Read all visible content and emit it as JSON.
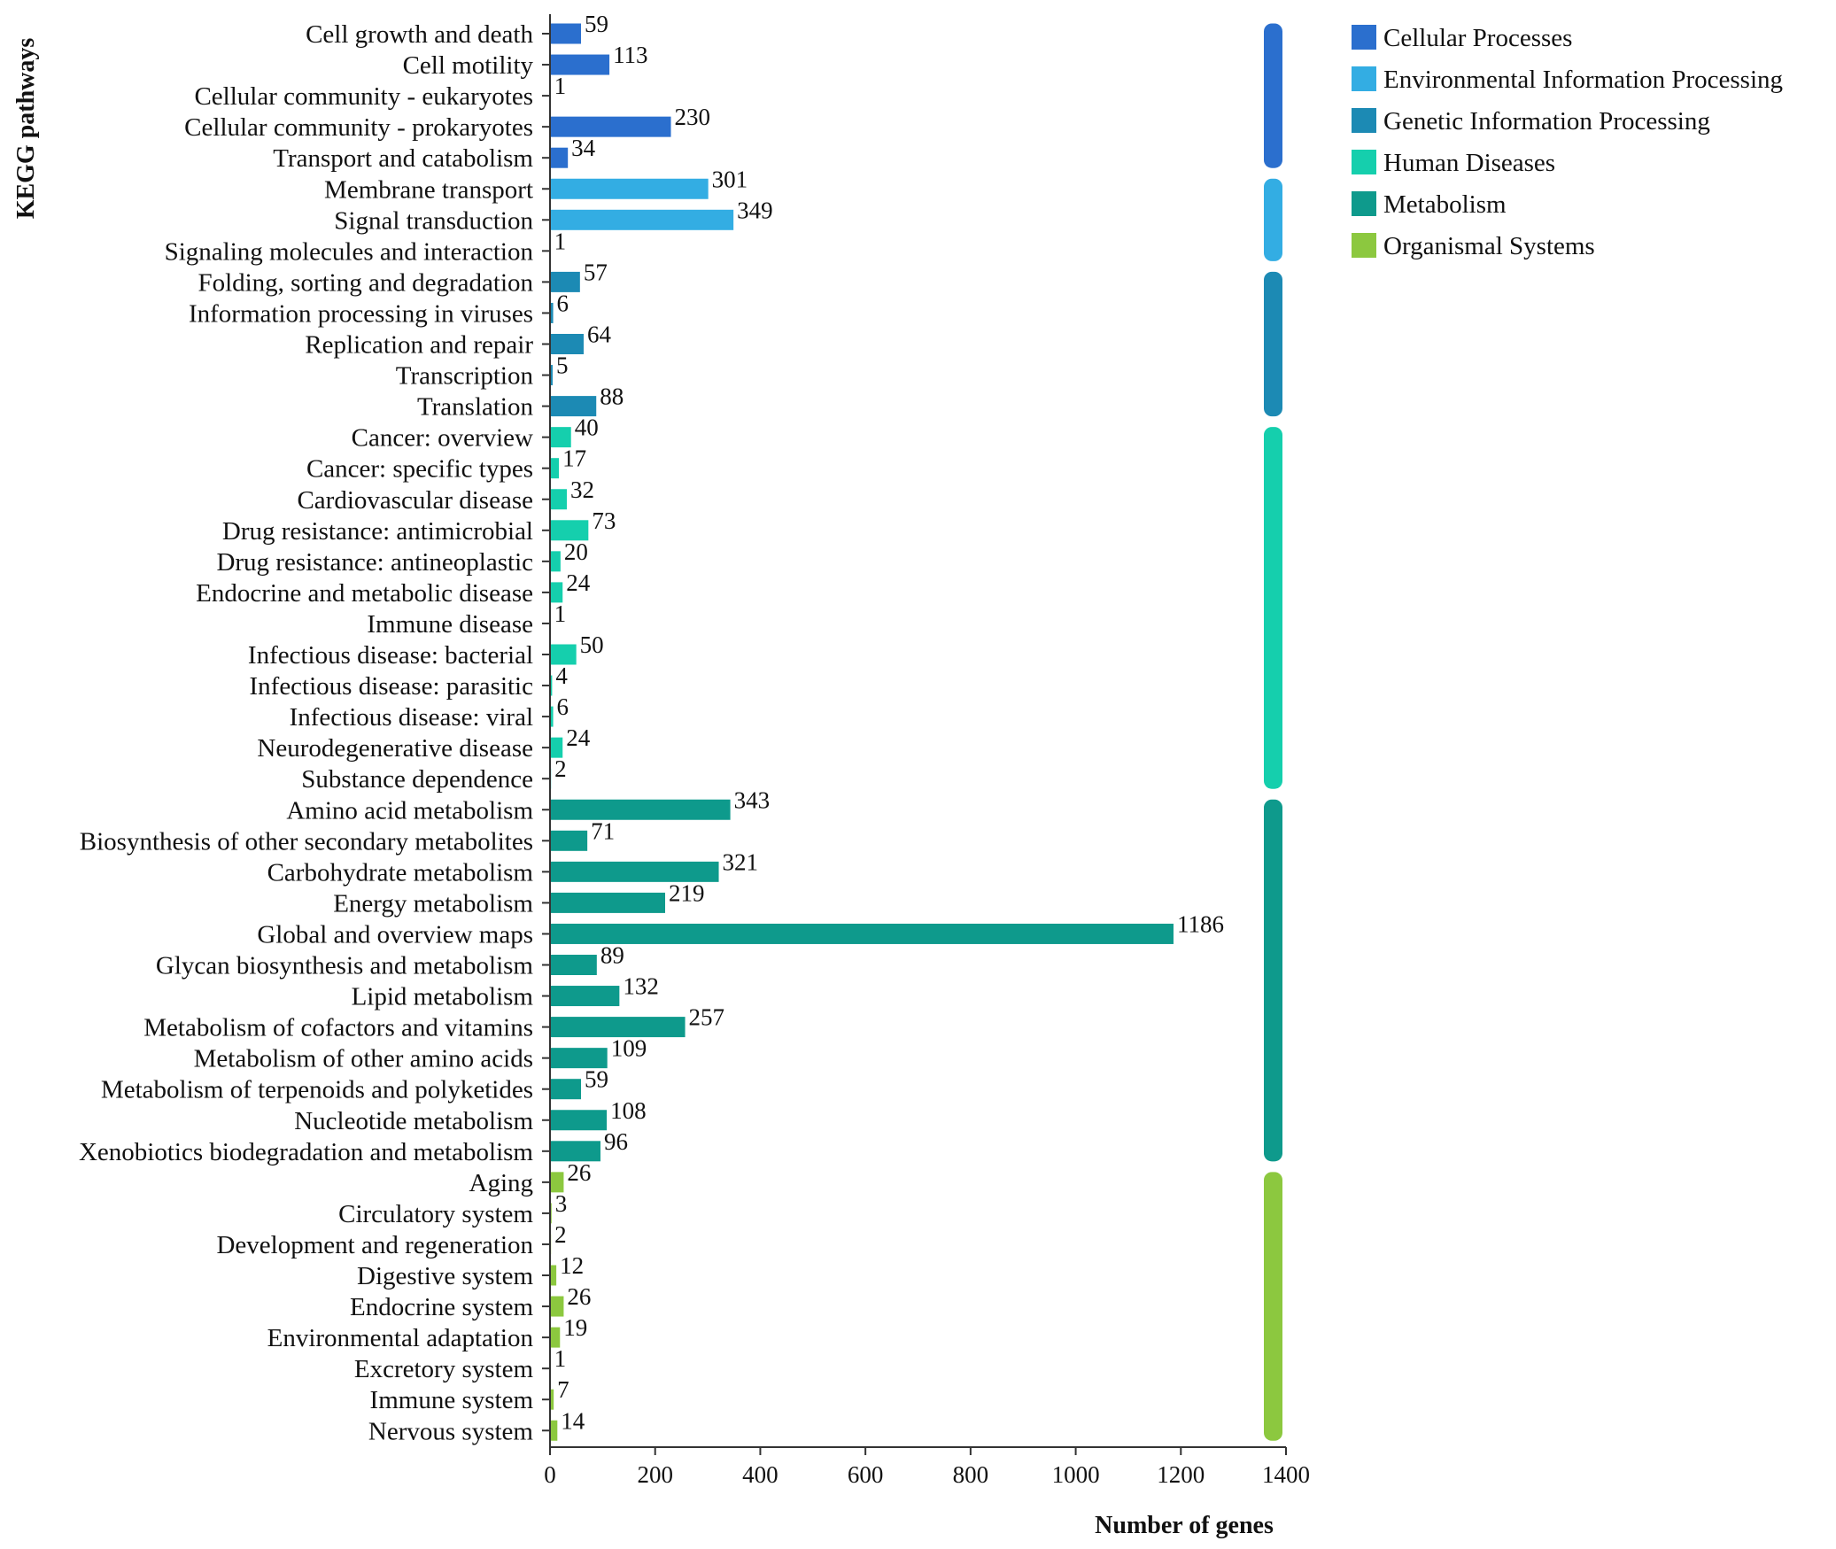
{
  "chart_data": {
    "type": "bar",
    "orientation": "horizontal",
    "xlabel": "Number of genes",
    "ylabel": "KEGG pathways",
    "xlim": [
      0,
      1400
    ],
    "xticks": [
      "0",
      "200",
      "400",
      "600",
      "800",
      "1000",
      "1200",
      "1400"
    ],
    "legend_position": "top-right",
    "grid": false,
    "groups": [
      {
        "name": "Cellular Processes",
        "color": "#2b6fce"
      },
      {
        "name": "Environmental Information Processing",
        "color": "#33ade3"
      },
      {
        "name": "Genetic Information Processing",
        "color": "#1c8ab4"
      },
      {
        "name": "Human Diseases",
        "color": "#15cfad"
      },
      {
        "name": "Metabolism",
        "color": "#0e9a8c"
      },
      {
        "name": "Organismal Systems",
        "color": "#8cc83f"
      }
    ],
    "categories": [
      "Cell growth and death",
      "Cell motility",
      "Cellular community - eukaryotes",
      "Cellular community - prokaryotes",
      "Transport and catabolism",
      "Membrane transport",
      "Signal transduction",
      "Signaling molecules and interaction",
      "Folding, sorting and degradation",
      "Information processing in viruses",
      "Replication and repair",
      "Transcription",
      "Translation",
      "Cancer: overview",
      "Cancer: specific types",
      "Cardiovascular disease",
      "Drug resistance: antimicrobial",
      "Drug resistance: antineoplastic",
      "Endocrine and metabolic disease",
      "Immune disease",
      "Infectious disease: bacterial",
      "Infectious disease: parasitic",
      "Infectious disease: viral",
      "Neurodegenerative disease",
      "Substance dependence",
      "Amino acid metabolism",
      "Biosynthesis of other secondary metabolites",
      "Carbohydrate metabolism",
      "Energy metabolism",
      "Global and overview maps",
      "Glycan biosynthesis and metabolism",
      "Lipid metabolism",
      "Metabolism of cofactors and vitamins",
      "Metabolism of other amino acids",
      "Metabolism of terpenoids and polyketides",
      "Nucleotide metabolism",
      "Xenobiotics biodegradation and metabolism",
      "Aging",
      "Circulatory system",
      "Development and regeneration",
      "Digestive system",
      "Endocrine system",
      "Environmental adaptation",
      "Excretory system",
      "Immune system",
      "Nervous system"
    ],
    "values": [
      59,
      113,
      1,
      230,
      34,
      301,
      349,
      1,
      57,
      6,
      64,
      5,
      88,
      40,
      17,
      32,
      73,
      20,
      24,
      1,
      50,
      4,
      6,
      24,
      2,
      343,
      71,
      321,
      219,
      1186,
      89,
      132,
      257,
      109,
      59,
      108,
      96,
      26,
      3,
      2,
      12,
      26,
      19,
      1,
      7,
      14
    ],
    "category_group": [
      0,
      0,
      0,
      0,
      0,
      1,
      1,
      1,
      2,
      2,
      2,
      2,
      2,
      3,
      3,
      3,
      3,
      3,
      3,
      3,
      3,
      3,
      3,
      3,
      3,
      4,
      4,
      4,
      4,
      4,
      4,
      4,
      4,
      4,
      4,
      4,
      4,
      5,
      5,
      5,
      5,
      5,
      5,
      5,
      5,
      5
    ]
  }
}
